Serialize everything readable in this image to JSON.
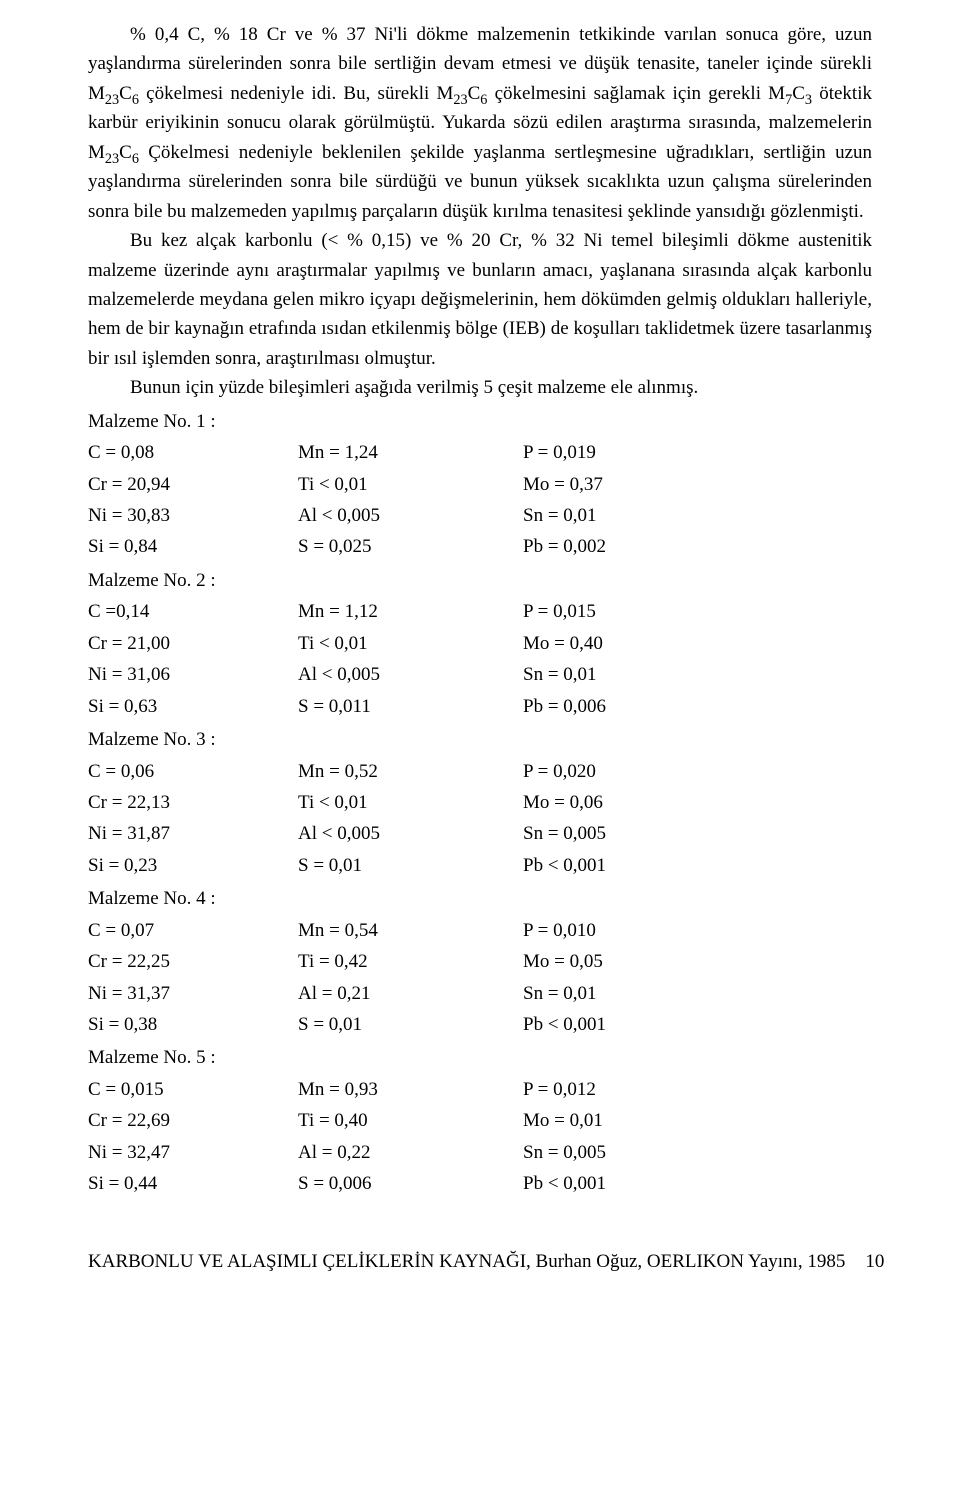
{
  "paragraphs": {
    "p1": "% 0,4 C, % 18 Cr ve % 37 Ni'li dökme malzemenin tetkikinde varılan sonuca göre, uzun yaşlandırma sürelerinden sonra bile sertliğin devam etmesi ve düşük tenasite, taneler içinde sürekli M₂₃C₆ çökelmesi nedeniyle idi. Bu, sürekli M₂₃C₆ çökelmesini sağlamak için gerekli M₇C₃ ötektik karbür eriyikinin sonucu olarak görülmüştü. Yukarda sözü edilen araştırma sırasında, malzemelerin M₂₃C₆ Çökelmesi nedeniyle beklenilen şekilde yaşlanma sertleşmesine uğradıkları, sertliğin uzun yaşlandırma sürelerinden sonra bile sürdüğü ve bunun yüksek sıcaklıkta uzun çalışma sürelerinden sonra bile bu malzemeden yapılmış parçaların düşük kırılma tenasitesi şeklinde yansıdığı gözlenmişti.",
    "p2": "Bu kez alçak karbonlu (< % 0,15) ve % 20 Cr, % 32 Ni temel bileşimli dökme austenitik malzeme üzerinde aynı araştırmalar yapılmış  ve bunların amacı, yaşlanana sırasında alçak karbonlu malzemelerde meydana gelen mikro içyapı değişmelerinin, hem dökümden gelmiş oldukları halleriyle, hem de bir kaynağın etrafında ısıdan etkilenmiş bölge (IEB) de koşulları taklidetmek üzere tasarlanmış bir ısıl işlemden sonra, araştırılması olmuştur.",
    "p3": "Bunun için yüzde bileşimleri aşağıda verilmiş 5 çeşit malzeme ele alınmış."
  },
  "materials": [
    {
      "heading": "Malzeme No. 1 :",
      "rows": [
        [
          "C = 0,08",
          "Mn = 1,24",
          "P = 0,019"
        ],
        [
          "Cr = 20,94",
          "Ti < 0,01",
          "Mo = 0,37"
        ],
        [
          "Ni = 30,83",
          "Al < 0,005",
          "Sn = 0,01"
        ],
        [
          "Si = 0,84",
          "S = 0,025",
          "Pb =  0,002"
        ]
      ]
    },
    {
      "heading": "Malzeme No. 2 :",
      "rows": [
        [
          "C =0,14",
          "Mn = 1,12",
          "P = 0,015"
        ],
        [
          "Cr = 21,00",
          "Ti < 0,01",
          "Mo = 0,40"
        ],
        [
          "Ni = 31,06",
          "Al < 0,005",
          "Sn = 0,01"
        ],
        [
          "Si = 0,63",
          "S = 0,011",
          "Pb = 0,006"
        ]
      ]
    },
    {
      "heading": "Malzeme No. 3 :",
      "rows": [
        [
          "C = 0,06",
          "Mn = 0,52",
          "P = 0,020"
        ],
        [
          "Cr = 22,13",
          "Ti < 0,01",
          "Mo = 0,06"
        ],
        [
          "Ni = 31,87",
          "Al < 0,005",
          "Sn = 0,005"
        ],
        [
          "Si = 0,23",
          "S = 0,01",
          "Pb < 0,001"
        ]
      ]
    },
    {
      "heading": "Malzeme No. 4 :",
      "rows": [
        [
          "C   = 0,07",
          "Mn =  0,54",
          "P    = 0,010"
        ],
        [
          "Cr = 22,25",
          "Ti = 0,42",
          "Mo = 0,05"
        ],
        [
          "Ni =  31,37",
          "Al = 0,21",
          "Sn  = 0,01"
        ],
        [
          "Si = 0,38",
          "S = 0,01",
          "Pb < 0,001"
        ]
      ]
    },
    {
      "heading": "Malzeme No. 5 :",
      "rows": [
        [
          "C   = 0,015",
          "Mn =  0,93",
          "P = 0,012"
        ],
        [
          "Cr =  22,69",
          "Ti  = 0,40",
          "Mo = 0,01"
        ],
        [
          "Ni = 32,47",
          "Al = 0,22",
          "Sn = 0,005"
        ],
        [
          "Si =  0,44",
          "S = 0,006",
          "Pb < 0,001"
        ]
      ]
    }
  ],
  "footer": {
    "title": "KARBONLU VE ALAŞIMLI ÇELİKLERİN KAYNAĞI, Burhan Oğuz, OERLIKON Yayını, 1985",
    "page": "10"
  }
}
